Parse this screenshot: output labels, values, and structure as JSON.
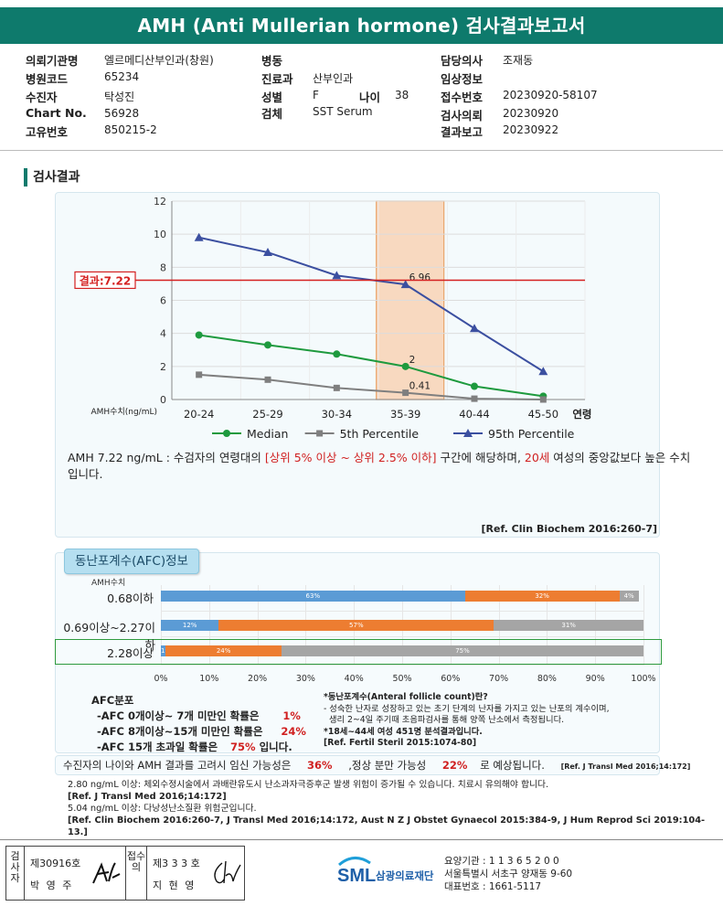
{
  "header": {
    "title": "AMH (Anti Mullerian hormone) 검사결과보고서"
  },
  "patient_info": {
    "col1": [
      {
        "label": "의뢰기관명",
        "value": "엘르메디산부인과(창원)"
      },
      {
        "label": "병원코드",
        "value": "65234"
      },
      {
        "label": "수진자",
        "value": "탁성진"
      },
      {
        "label": "Chart No.",
        "value": "56928"
      },
      {
        "label": "고유번호",
        "value": "850215-2"
      }
    ],
    "col2": [
      {
        "label": "병동",
        "value": ""
      },
      {
        "label": "진료과",
        "value": "산부인과"
      },
      {
        "label": "성별",
        "value": "F"
      },
      {
        "label": "검체",
        "value": "SST Serum"
      }
    ],
    "age_label": "나이",
    "age_value": "38",
    "col3": [
      {
        "label": "담당의사",
        "value": "조재동"
      },
      {
        "label": "임상정보",
        "value": ""
      },
      {
        "label": "접수번호",
        "value": "20230920-58107"
      },
      {
        "label": "검사의뢰",
        "value": "20230920"
      },
      {
        "label": "결과보고",
        "value": "20230922"
      }
    ]
  },
  "section_title": "검사결과",
  "chart_data": {
    "type": "line",
    "categories": [
      "20-24",
      "25-29",
      "30-34",
      "35-39",
      "40-44",
      "45-50"
    ],
    "x_suffix_label": "연령",
    "ylabel": "AMH수치(ng/mL)",
    "ylim": [
      0,
      12
    ],
    "yticks": [
      0,
      2,
      4,
      6,
      8,
      10,
      12
    ],
    "grid": true,
    "legend_position": "bottom",
    "highlight_category": "35-39",
    "series": [
      {
        "name": "Median",
        "values": [
          3.9,
          3.3,
          2.75,
          2.0,
          0.8,
          0.2
        ],
        "color": "#1e9a3e",
        "marker": "circle"
      },
      {
        "name": "5th Percentile",
        "values": [
          1.5,
          1.2,
          0.7,
          0.41,
          0.05,
          0.0
        ],
        "color": "#7f7f7f",
        "marker": "square"
      },
      {
        "name": "95th Percentile",
        "values": [
          9.8,
          8.9,
          7.5,
          6.96,
          4.3,
          1.7
        ],
        "color": "#3b4fa0",
        "marker": "triangle"
      }
    ],
    "point_labels": [
      {
        "series": "95th Percentile",
        "category": "35-39",
        "text": "6.96"
      },
      {
        "series": "Median",
        "category": "35-39",
        "text": "2"
      },
      {
        "series": "5th Percentile",
        "category": "35-39",
        "text": "0.41"
      }
    ],
    "result_line": {
      "value": 7.22,
      "label": "결과:7.22",
      "color": "#d42020"
    }
  },
  "result_text": {
    "p1": "AMH  7.22 ng/mL : 수검자의 연령대의 ",
    "range": "[상위 5% 이상 ~ 상위 2.5% 이하]",
    "p2": "  구간에 해당하며, ",
    "age_eq": "20세",
    "p3": " 여성의 중앙값보다 높은 수치입니다.",
    "ref": "[Ref. Clin Biochem 2016:260-7]"
  },
  "afc": {
    "title": "동난포계수(AFC)정보",
    "col_header": "AMH수치",
    "rows": [
      {
        "label": "0.68이하",
        "segments": [
          63,
          32,
          4
        ]
      },
      {
        "label": "0.69이상~2.27이하",
        "segments": [
          12,
          57,
          31
        ]
      },
      {
        "label": "2.28이상",
        "segments": [
          1,
          24,
          75
        ]
      }
    ],
    "segment_labels": [
      [
        "63%",
        "32%",
        "4%"
      ],
      [
        "12%",
        "57%",
        "31%"
      ],
      [
        "1%",
        "24%",
        "75%"
      ]
    ],
    "x_ticks": [
      "0%",
      "10%",
      "20%",
      "30%",
      "40%",
      "50%",
      "60%",
      "70%",
      "80%",
      "90%",
      "100%"
    ],
    "dist_title": "AFC분포",
    "dist_lines": [
      {
        "text": "-AFC 0개이상~ 7개 미만인 확률은",
        "value": "1%",
        "tail": ""
      },
      {
        "text": "-AFC 8개이상~15개 미만인 확률은",
        "value": "24%",
        "tail": ""
      },
      {
        "text": "-AFC 15개 초과일 확률은",
        "value": "75%",
        "tail": " 입니다."
      }
    ],
    "note_lines": [
      "*동난포계수(Anteral follicle count)란?",
      "- 성숙한 난자로 성장하고 있는 초기 단계의 난자를 가지고 있는 난포의 계수이며,",
      "  생리 2~4일 주기때 초음파검사를 통해 양쪽 난소에서 측정됩니다.",
      "*18세~44세 여성 451명 분석결과입니다.",
      "[Ref. Fertil Steril 2015:1074-80]"
    ]
  },
  "pregnancy": {
    "p1": "수진자의 나이와 AMH 결과를 고려시 임신 가능성은",
    "v1": "36%",
    "p2": ",정상 분만 가능성",
    "v2": "22%",
    "p3": "로 예상됩니다.",
    "ref": "[Ref. J Transl Med 2016;14:172]"
  },
  "notes": [
    {
      "text": "2.80  ng/mL  이상: 체외수정시술에서 과배란유도시 난소과자극증후군 발생 위험이 증가될 수 있습니다. 치료시 유의해야 합니다.",
      "bold": false
    },
    {
      "text": "[Ref. J Transl Med 2016;14:172]",
      "bold": true
    },
    {
      "text": "5.04  ng/mL  이상: 다낭성난소질환 위험군입니다.",
      "bold": false
    },
    {
      "text": "[Ref. Clin Biochem 2016:260-7, J Transl Med 2016;14:172, Aust N Z J Obstet Gynaecol 2015:384-9, J Hum Reprod Sci 2019:104-13.]",
      "bold": true
    }
  ],
  "footer": {
    "tester_label": "검사자",
    "tester_no": "제30916호",
    "tester_name": "박 영 주",
    "reviewer_label": "접수의",
    "reviewer_no": "제3 3 3 호",
    "reviewer_name": "지 현 영",
    "logo_text": "SML",
    "org_name": "삼광의료재단",
    "org_lines": [
      "요양기관 : 1 1 3 6 5 2 0 0",
      "서울특별시 서초구 양재동 9-60",
      "대표번호 : 1661-5117"
    ]
  }
}
